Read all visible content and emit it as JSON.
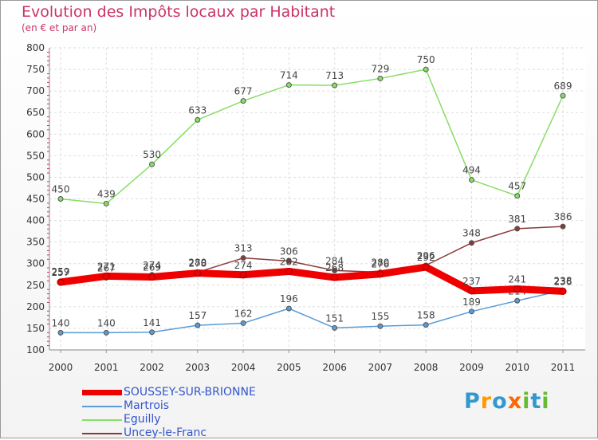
{
  "chart_data": {
    "type": "line",
    "title": "Evolution des Impôts locaux par Habitant",
    "subtitle": "(en € et par an)",
    "x": [
      "2000",
      "2001",
      "2002",
      "2003",
      "2004",
      "2005",
      "2006",
      "2007",
      "2008",
      "2009",
      "2010",
      "2011"
    ],
    "y_ticks": [
      "100",
      "150",
      "200",
      "250",
      "300",
      "350",
      "400",
      "450",
      "500",
      "550",
      "600",
      "650",
      "700",
      "750",
      "800"
    ],
    "ylim": [
      100,
      800
    ],
    "grid": true,
    "legend_position": "bottom-left",
    "series": [
      {
        "name": "SOUSSEY-SUR-BRIONNE",
        "color": "#ee0000",
        "values": [
          257,
          271,
          269,
          278,
          274,
          282,
          268,
          276,
          292,
          237,
          241,
          236
        ],
        "labels": [
          "257",
          "271",
          "269",
          "278",
          "274",
          "282",
          "268",
          "276",
          "292",
          "237",
          "241",
          "236"
        ]
      },
      {
        "name": "Martrois",
        "color": "#5b9bd5",
        "values": [
          140,
          140,
          141,
          157,
          162,
          196,
          151,
          155,
          158,
          189,
          214,
          238
        ],
        "labels": [
          "140",
          "140",
          "141",
          "157",
          "162",
          "196",
          "151",
          "155",
          "158",
          "189",
          "214",
          "238"
        ]
      },
      {
        "name": "Eguilly",
        "color": "#88dd66",
        "values": [
          450,
          439,
          530,
          633,
          677,
          714,
          713,
          729,
          750,
          494,
          457,
          689
        ],
        "labels": [
          "450",
          "439",
          "530",
          "633",
          "677",
          "714",
          "713",
          "729",
          "750",
          "494",
          "457",
          "689"
        ]
      },
      {
        "name": "Uncey-le-Franc",
        "color": "#8b3a3a",
        "values": [
          259,
          267,
          274,
          280,
          313,
          306,
          284,
          280,
          296,
          348,
          381,
          386
        ],
        "labels": [
          "259",
          "267",
          "274",
          "280",
          "313",
          "306",
          "284",
          "280",
          "296",
          "348",
          "381",
          "386"
        ]
      }
    ]
  },
  "logo": {
    "letters": [
      "P",
      "r",
      "o",
      "x",
      "i",
      "t",
      "i"
    ],
    "colors": [
      "#3399cc",
      "#ff9900",
      "#3399cc",
      "#ff6600",
      "#66bb33",
      "#3399cc",
      "#66bb33"
    ]
  }
}
